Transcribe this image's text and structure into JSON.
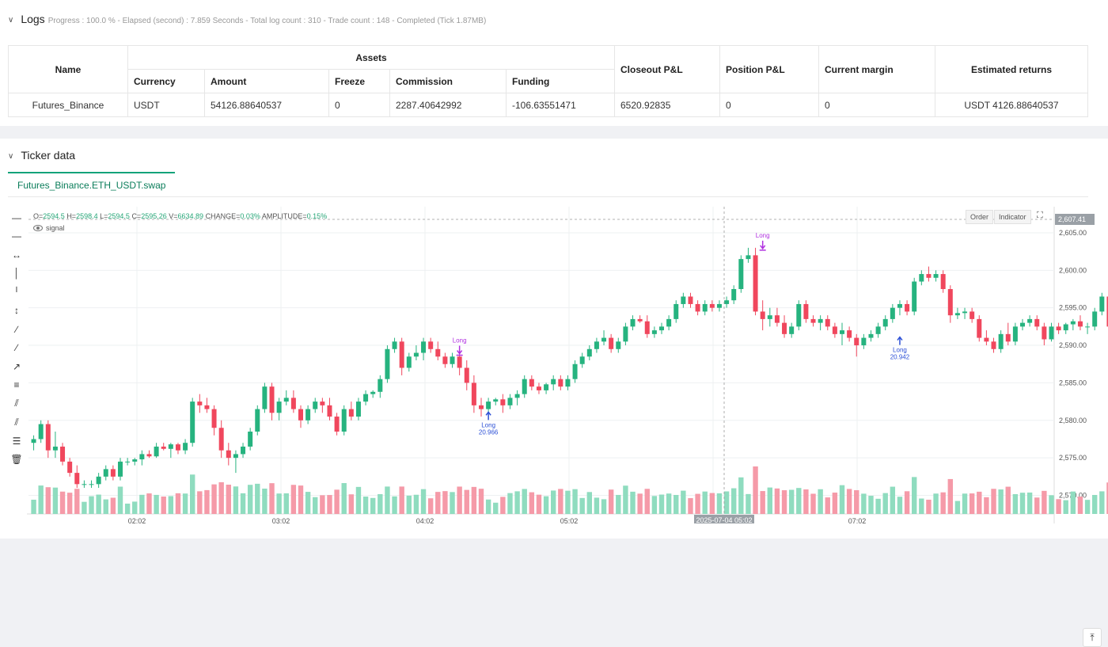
{
  "logs": {
    "title": "Logs",
    "summary": "Progress : 100.0 % - Elapsed (second) : 7.859  Seconds - Total log count : 310 - Trade count : 148 - Completed (Tick 1.87MB)",
    "table": {
      "col_name": "Name",
      "col_assets": "Assets",
      "sub_cols": [
        "Currency",
        "Amount",
        "Freeze",
        "Commission",
        "Funding"
      ],
      "col_closeout": "Closeout P&L",
      "col_position": "Position P&L",
      "col_margin": "Current margin",
      "col_returns": "Estimated returns",
      "row": {
        "name": "Futures_Binance",
        "currency": "USDT",
        "amount": "54126.88640537",
        "freeze": "0",
        "commission": "2287.40642992",
        "funding": "-106.63551471",
        "closeout": "6520.92835",
        "position": "0",
        "margin": "0",
        "returns": "USDT 4126.88640537"
      }
    }
  },
  "ticker": {
    "title": "Ticker data",
    "tab": "Futures_Binance.ETH_USDT.swap",
    "ohlc": {
      "o_label": "O=",
      "o": "2594.5",
      "h_label": "H=",
      "h": "2598.4",
      "l_label": "L=",
      "l": "2594.5",
      "c_label": "C=",
      "c": "2595.26",
      "v_label": "V=",
      "v": "6634.89",
      "change_label": "CHANGE=",
      "change": "0.03%",
      "amp_label": "AMPLITUDE=",
      "amp": "0.15%"
    },
    "signal_label": "signal",
    "order_btn": "Order",
    "indicator_btn": "Indicator",
    "crosshair_price": "2,607.41",
    "crosshair_time": "2025-07-04 05:02",
    "tools": [
      "horizontal-line-icon",
      "horizontal-ray-icon",
      "extended-line-icon",
      "vertical-line-icon",
      "vertical-segment-icon",
      "vertical-arrow-icon",
      "trend-line-icon",
      "ray-icon",
      "arrow-line-icon",
      "price-label-icon",
      "parallel-channel-icon",
      "pitchfork-icon",
      "fib-levels-icon",
      "trash-icon"
    ]
  },
  "chart_data": {
    "type": "candlestick",
    "x_ticks": [
      "02:02",
      "03:02",
      "04:02",
      "05:02",
      "06:02",
      "07:02"
    ],
    "y_ticks": [
      "2,605.00",
      "2,600.00",
      "2,595.00",
      "2,590.00",
      "2,585.00",
      "2,580.00",
      "2,575.00",
      "2,570.00"
    ],
    "ylim": [
      2569,
      2607
    ],
    "candles": [
      [
        2577,
        2578,
        2576,
        2577.5
      ],
      [
        2577.5,
        2580,
        2577,
        2579.5
      ],
      [
        2579.5,
        2580,
        2575,
        2576
      ],
      [
        2576,
        2578.5,
        2575,
        2576.5
      ],
      [
        2576.5,
        2577,
        2574,
        2574.5
      ],
      [
        2574.5,
        2575,
        2572.5,
        2573
      ],
      [
        2573,
        2574,
        2571,
        2571.5
      ],
      [
        2571.5,
        2572,
        2571,
        2571.5
      ],
      [
        2571.5,
        2572,
        2571,
        2571.5
      ],
      [
        2571.5,
        2573,
        2571,
        2572.5
      ],
      [
        2572.5,
        2574,
        2572,
        2573.5
      ],
      [
        2573.5,
        2574,
        2572,
        2572.5
      ],
      [
        2572.5,
        2575,
        2572,
        2574.5
      ],
      [
        2574.5,
        2575,
        2574,
        2574.5
      ],
      [
        2574.5,
        2575,
        2574,
        2574.8
      ],
      [
        2574.8,
        2576,
        2574,
        2575.5
      ],
      [
        2575.5,
        2576,
        2575,
        2575.2
      ],
      [
        2575.2,
        2577,
        2575,
        2576.5
      ],
      [
        2576.5,
        2577,
        2576,
        2576.2
      ],
      [
        2576.2,
        2577,
        2575,
        2576.8
      ],
      [
        2576.8,
        2577,
        2575.5,
        2576
      ],
      [
        2576,
        2577.5,
        2575.5,
        2577
      ],
      [
        2577,
        2583,
        2576.5,
        2582.5
      ],
      [
        2582.5,
        2583.5,
        2581,
        2582
      ],
      [
        2582,
        2583,
        2581,
        2581.5
      ],
      [
        2581.5,
        2582,
        2578,
        2579
      ],
      [
        2579,
        2580,
        2575,
        2576
      ],
      [
        2576,
        2577,
        2574,
        2575
      ],
      [
        2575,
        2576,
        2573,
        2575.5
      ],
      [
        2575.5,
        2577,
        2575,
        2576.5
      ],
      [
        2576.5,
        2579,
        2576,
        2578.5
      ],
      [
        2578.5,
        2582,
        2578,
        2581.5
      ],
      [
        2581.5,
        2585,
        2581,
        2584.5
      ],
      [
        2584.5,
        2585,
        2580,
        2581
      ],
      [
        2581,
        2583,
        2580,
        2582.5
      ],
      [
        2582.5,
        2584,
        2582,
        2583
      ],
      [
        2583,
        2584,
        2581,
        2581.5
      ],
      [
        2581.5,
        2582,
        2579,
        2580
      ],
      [
        2580,
        2582,
        2579.5,
        2581.5
      ],
      [
        2581.5,
        2583,
        2581,
        2582.5
      ],
      [
        2582.5,
        2583,
        2581,
        2582
      ],
      [
        2582,
        2583,
        2580,
        2580.5
      ],
      [
        2580.5,
        2581,
        2578,
        2578.5
      ],
      [
        2578.5,
        2582,
        2578,
        2581.5
      ],
      [
        2581.5,
        2582.5,
        2580,
        2580.5
      ],
      [
        2580.5,
        2583,
        2580,
        2582.5
      ],
      [
        2582.5,
        2584,
        2582,
        2583.5
      ],
      [
        2583.5,
        2584,
        2583,
        2583.8
      ],
      [
        2583.8,
        2586,
        2583,
        2585.5
      ],
      [
        2585.5,
        2590,
        2585,
        2589.5
      ],
      [
        2589.5,
        2591,
        2589,
        2590.5
      ],
      [
        2590.5,
        2591,
        2586,
        2587
      ],
      [
        2587,
        2589,
        2586.5,
        2588.5
      ],
      [
        2588.5,
        2590,
        2588,
        2589
      ],
      [
        2589,
        2591,
        2588,
        2590.5
      ],
      [
        2590.5,
        2591,
        2589,
        2589.5
      ],
      [
        2589.5,
        2590.5,
        2588,
        2588.5
      ],
      [
        2588.5,
        2589,
        2587,
        2587.5
      ],
      [
        2587.5,
        2589,
        2587,
        2588.5
      ],
      [
        2588.5,
        2589,
        2586,
        2587
      ],
      [
        2587,
        2588,
        2584,
        2585
      ],
      [
        2585,
        2586,
        2581,
        2582
      ],
      [
        2582,
        2583,
        2580.5,
        2581.5
      ],
      [
        2581.5,
        2583,
        2581,
        2582.5
      ],
      [
        2582.5,
        2583,
        2582,
        2582.8
      ],
      [
        2582.8,
        2583.5,
        2581,
        2582
      ],
      [
        2582,
        2583.5,
        2581.5,
        2583
      ],
      [
        2583,
        2584,
        2582,
        2583.5
      ],
      [
        2583.5,
        2586,
        2583,
        2585.5
      ],
      [
        2585.5,
        2586,
        2584,
        2584.5
      ],
      [
        2584.5,
        2585,
        2583.5,
        2584
      ],
      [
        2584,
        2585,
        2583.5,
        2584.8
      ],
      [
        2584.8,
        2586,
        2584,
        2585.5
      ],
      [
        2585.5,
        2586,
        2584,
        2584.5
      ],
      [
        2584.5,
        2586,
        2584,
        2585.5
      ],
      [
        2585.5,
        2588,
        2585,
        2587.5
      ],
      [
        2587.5,
        2589,
        2587,
        2588.5
      ],
      [
        2588.5,
        2590,
        2588,
        2589.5
      ],
      [
        2589.5,
        2591,
        2589,
        2590.5
      ],
      [
        2590.5,
        2592,
        2590,
        2591
      ],
      [
        2591,
        2591.5,
        2589,
        2589.5
      ],
      [
        2589.5,
        2591,
        2589,
        2590.5
      ],
      [
        2590.5,
        2593,
        2590,
        2592.5
      ],
      [
        2592.5,
        2594,
        2592,
        2593.5
      ],
      [
        2593.5,
        2594,
        2593,
        2593.2
      ],
      [
        2593.2,
        2594,
        2591,
        2591.5
      ],
      [
        2591.5,
        2592.5,
        2591,
        2592
      ],
      [
        2592,
        2593,
        2591.5,
        2592.5
      ],
      [
        2592.5,
        2594,
        2592,
        2593.5
      ],
      [
        2593.5,
        2596,
        2593,
        2595.5
      ],
      [
        2595.5,
        2597,
        2595,
        2596.5
      ],
      [
        2596.5,
        2597,
        2595,
        2595.5
      ],
      [
        2595.5,
        2596,
        2594,
        2594.5
      ],
      [
        2594.5,
        2596,
        2594,
        2595.5
      ],
      [
        2595.5,
        2596,
        2594.5,
        2595
      ],
      [
        2595,
        2596,
        2594.5,
        2595.5
      ],
      [
        2595.5,
        2596.5,
        2595,
        2596
      ],
      [
        2596,
        2598,
        2595.5,
        2597.5
      ],
      [
        2597.5,
        2602,
        2597,
        2601.5
      ],
      [
        2601.5,
        2603,
        2601,
        2602
      ],
      [
        2602,
        2603,
        2594,
        2594.5
      ],
      [
        2594.5,
        2596,
        2592,
        2593.5
      ],
      [
        2593.5,
        2595,
        2592.5,
        2594
      ],
      [
        2594,
        2595,
        2592.5,
        2593
      ],
      [
        2593,
        2594,
        2591,
        2591.5
      ],
      [
        2591.5,
        2593,
        2591,
        2592.5
      ],
      [
        2592.5,
        2596,
        2592,
        2595.5
      ],
      [
        2595.5,
        2596,
        2593,
        2593.5
      ],
      [
        2593.5,
        2594,
        2592.5,
        2593
      ],
      [
        2593,
        2594,
        2592,
        2593.5
      ],
      [
        2593.5,
        2594,
        2592,
        2592.5
      ],
      [
        2592.5,
        2593,
        2591,
        2591.5
      ],
      [
        2591.5,
        2593,
        2590,
        2592
      ],
      [
        2592,
        2592.5,
        2590.5,
        2591
      ],
      [
        2591,
        2591.5,
        2588.5,
        2590
      ],
      [
        2590,
        2591.5,
        2589.5,
        2591
      ],
      [
        2591,
        2592,
        2590.5,
        2591.5
      ],
      [
        2591.5,
        2593,
        2591,
        2592.5
      ],
      [
        2592.5,
        2594,
        2592,
        2593.5
      ],
      [
        2593.5,
        2595.5,
        2593,
        2595
      ],
      [
        2595,
        2596,
        2594,
        2595.5
      ],
      [
        2595.5,
        2596,
        2594,
        2594.5
      ],
      [
        2594.5,
        2599,
        2594,
        2598.5
      ],
      [
        2598.5,
        2600,
        2598,
        2599.5
      ],
      [
        2599.5,
        2600.5,
        2598.5,
        2599
      ],
      [
        2599,
        2600,
        2598.5,
        2599.5
      ],
      [
        2599.5,
        2600,
        2597,
        2597.5
      ],
      [
        2597.5,
        2598,
        2593,
        2594
      ],
      [
        2594,
        2595,
        2593.5,
        2594.3
      ],
      [
        2594.3,
        2595,
        2593.5,
        2594.5
      ],
      [
        2594.5,
        2595,
        2593,
        2593.5
      ],
      [
        2593.5,
        2594,
        2590.5,
        2591
      ],
      [
        2591,
        2592,
        2590,
        2590.5
      ],
      [
        2590.5,
        2591,
        2589,
        2589.5
      ],
      [
        2589.5,
        2592,
        2589,
        2591.5
      ],
      [
        2591.5,
        2593,
        2590,
        2590.5
      ],
      [
        2590.5,
        2593,
        2590,
        2592.5
      ],
      [
        2592.5,
        2593.5,
        2592,
        2593
      ],
      [
        2593,
        2594,
        2592.5,
        2593.5
      ],
      [
        2593.5,
        2594,
        2592,
        2592.5
      ],
      [
        2592.5,
        2593,
        2590,
        2590.8
      ],
      [
        2590.8,
        2593,
        2590.5,
        2592.5
      ],
      [
        2592.5,
        2593,
        2591.5,
        2592
      ],
      [
        2592,
        2593,
        2591.5,
        2592.8
      ],
      [
        2592.8,
        2593.5,
        2592,
        2593.2
      ],
      [
        2593.2,
        2594,
        2592,
        2592.5
      ],
      [
        2592.5,
        2593,
        2591.5,
        2592.5
      ],
      [
        2592.5,
        2595,
        2592,
        2594.5
      ],
      [
        2594.5,
        2597,
        2594,
        2596.5
      ],
      [
        2596.5,
        2597,
        2592,
        2592.5
      ],
      [
        2592.5,
        2593,
        2590,
        2590.5
      ],
      [
        2590.5,
        2591,
        2589.5,
        2590
      ],
      [
        2590,
        2590.5,
        2587,
        2587.5
      ],
      [
        2587.5,
        2588,
        2585.5,
        2586
      ],
      [
        2586,
        2587.5,
        2585.5,
        2587
      ],
      [
        2587,
        2588,
        2586.5,
        2587.5
      ],
      [
        2587.5,
        2588,
        2586,
        2586.5
      ],
      [
        2586.5,
        2588,
        2586,
        2587.5
      ],
      [
        2587.5,
        2588,
        2585,
        2585.5
      ],
      [
        2585.5,
        2586,
        2584.5,
        2585
      ],
      [
        2585,
        2586,
        2584.5,
        2585.5
      ],
      [
        2585.5,
        2586,
        2585,
        2585.8
      ],
      [
        2585.8,
        2589,
        2585.5,
        2588.5
      ],
      [
        2588.5,
        2589,
        2587.5,
        2588
      ],
      [
        2588,
        2589.5,
        2587.5,
        2589
      ],
      [
        2589,
        2589.5,
        2588,
        2588.5
      ],
      [
        2588.5,
        2589.5,
        2588,
        2589.2
      ],
      [
        2589.2,
        2590,
        2588.5,
        2589.5
      ],
      [
        2589.5,
        2590,
        2589,
        2589.3
      ],
      [
        2589.3,
        2590.5,
        2589,
        2590.3
      ]
    ],
    "signals": [
      {
        "label": "Long",
        "value": "",
        "direction": "down",
        "candle": 59,
        "price": 2589
      },
      {
        "label": "Long",
        "value": "20.966",
        "direction": "up",
        "candle": 63,
        "price": 2581
      },
      {
        "label": "Long",
        "value": "",
        "direction": "down",
        "candle": 101,
        "price": 2603
      },
      {
        "label": "Long",
        "value": "20.942",
        "direction": "up",
        "candle": 120,
        "price": 2591
      }
    ]
  }
}
